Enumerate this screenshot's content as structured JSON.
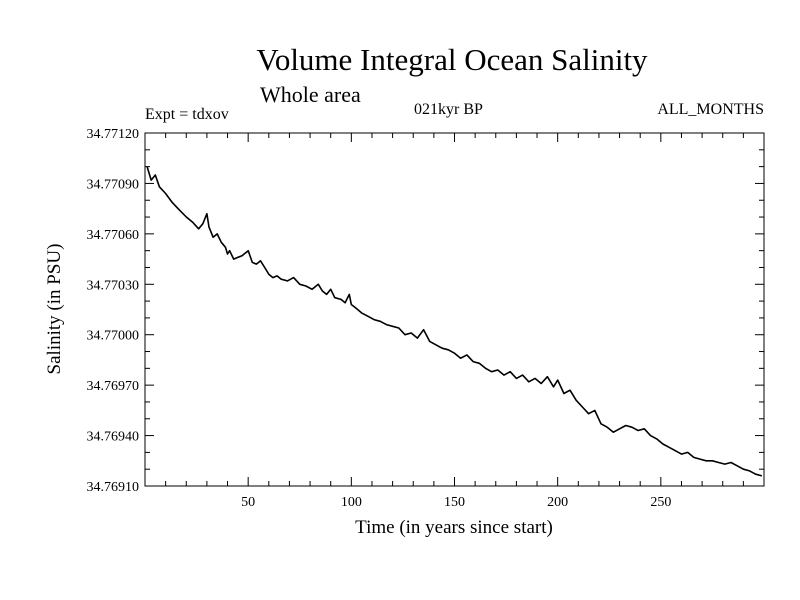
{
  "chart_data": {
    "type": "line",
    "title": "Volume Integral Ocean Salinity",
    "subtitle": "Whole area",
    "annotations": {
      "left": "Expt = tdxov",
      "center": "021kyr BP",
      "right": "ALL_MONTHS"
    },
    "xlabel": "Time (in years since start)",
    "ylabel": "Salinity (in PSU)",
    "xlim": [
      0,
      300
    ],
    "ylim": [
      34.7691,
      34.7712
    ],
    "x_ticks": [
      50,
      100,
      150,
      200,
      250
    ],
    "y_ticks": [
      "34.76910",
      "34.76940",
      "34.76970",
      "34.77000",
      "34.77030",
      "34.77060",
      "34.77090",
      "34.77120"
    ],
    "grid": false,
    "line_color": "#000000",
    "series": [
      {
        "x": [
          1,
          3,
          5,
          7,
          10,
          13,
          16,
          20,
          23,
          26,
          28,
          30,
          31,
          33,
          35,
          37,
          39,
          40,
          41,
          43,
          45,
          47,
          50,
          52,
          54,
          56,
          58,
          60,
          62,
          64,
          66,
          69,
          72,
          75,
          78,
          81,
          84,
          86,
          88,
          90,
          92,
          95,
          97,
          99,
          100,
          102,
          105,
          108,
          111,
          114,
          117,
          120,
          123,
          126,
          129,
          132,
          135,
          138,
          141,
          144,
          147,
          150,
          153,
          156,
          159,
          162,
          165,
          168,
          171,
          174,
          177,
          180,
          183,
          186,
          189,
          192,
          195,
          198,
          200,
          203,
          206,
          209,
          212,
          215,
          218,
          221,
          224,
          227,
          230,
          233,
          236,
          239,
          242,
          245,
          248,
          251,
          254,
          257,
          260,
          263,
          266,
          269,
          272,
          275,
          278,
          281,
          284,
          287,
          290,
          293,
          296,
          299
        ],
        "y": [
          34.771,
          34.77092,
          34.77095,
          34.77088,
          34.77084,
          34.77079,
          34.77075,
          34.7707,
          34.77067,
          34.77063,
          34.77066,
          34.77072,
          34.77064,
          34.77058,
          34.7706,
          34.77055,
          34.77052,
          34.77048,
          34.7705,
          34.77045,
          34.77046,
          34.77047,
          34.7705,
          34.77043,
          34.77042,
          34.77044,
          34.7704,
          34.77036,
          34.77034,
          34.77035,
          34.77033,
          34.77032,
          34.77034,
          34.7703,
          34.77029,
          34.77027,
          34.7703,
          34.77026,
          34.77024,
          34.77027,
          34.77022,
          34.77021,
          34.77019,
          34.77024,
          34.77018,
          34.77016,
          34.77013,
          34.77011,
          34.77009,
          34.77008,
          34.77006,
          34.77005,
          34.77004,
          34.77,
          34.77001,
          34.76998,
          34.77003,
          34.76996,
          34.76994,
          34.76992,
          34.76991,
          34.76989,
          34.76986,
          34.76988,
          34.76984,
          34.76983,
          34.7698,
          34.76978,
          34.76979,
          34.76976,
          34.76978,
          34.76974,
          34.76976,
          34.76972,
          34.76974,
          34.76971,
          34.76975,
          34.76969,
          34.76973,
          34.76965,
          34.76967,
          34.76961,
          34.76957,
          34.76953,
          34.76955,
          34.76947,
          34.76945,
          34.76942,
          34.76944,
          34.76946,
          34.76945,
          34.76943,
          34.76944,
          34.7694,
          34.76938,
          34.76935,
          34.76933,
          34.76931,
          34.76929,
          34.7693,
          34.76927,
          34.76926,
          34.76925,
          34.76925,
          34.76924,
          34.76923,
          34.76924,
          34.76922,
          34.7692,
          34.76919,
          34.76917,
          34.76916
        ]
      }
    ]
  }
}
